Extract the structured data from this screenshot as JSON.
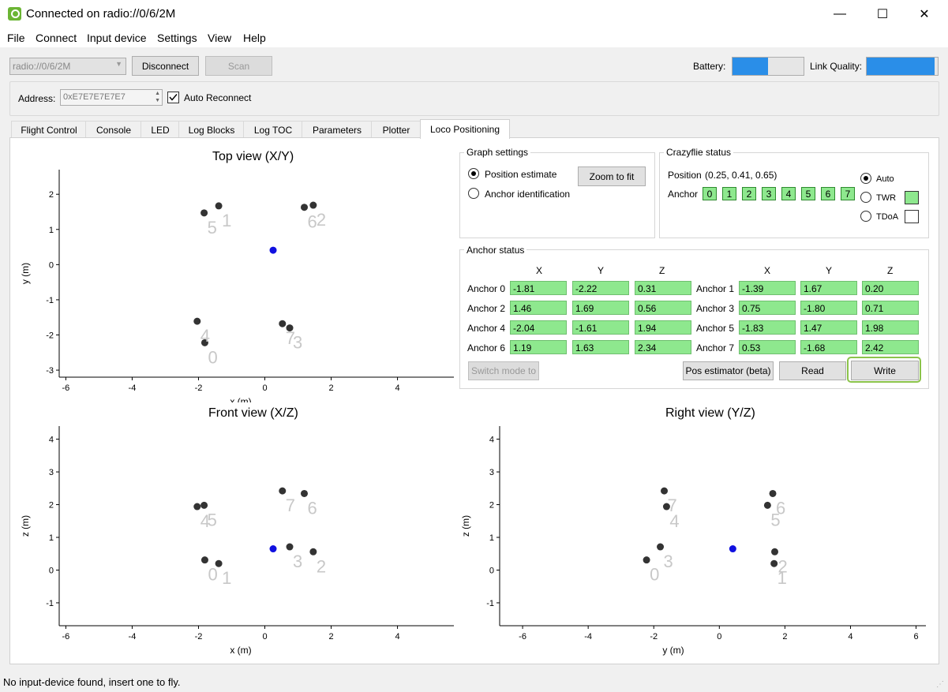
{
  "window": {
    "title": "Connected on radio://0/6/2M",
    "minimize": "—",
    "maximize": "☐",
    "close": "✕"
  },
  "menu": [
    "File",
    "Connect",
    "Input device",
    "Settings",
    "View",
    "Help"
  ],
  "toolbar": {
    "uri": "radio://0/6/2M",
    "disconnect": "Disconnect",
    "scan": "Scan",
    "battery_label": "Battery:",
    "battery_level": 0.5,
    "link_label": "Link Quality:",
    "link_level": 0.95,
    "address_label": "Address:",
    "address_value": "0xE7E7E7E7E7",
    "auto_reconnect": "Auto Reconnect",
    "auto_reconnect_checked": true
  },
  "tabs": [
    "Flight Control",
    "Console",
    "LED",
    "Log Blocks",
    "Log TOC",
    "Parameters",
    "Plotter",
    "Loco Positioning"
  ],
  "active_tab": "Loco Positioning",
  "graph_settings": {
    "title": "Graph settings",
    "option_position": "Position estimate",
    "option_anchor": "Anchor identification",
    "zoom_button": "Zoom to fit"
  },
  "crazyflie_status": {
    "title": "Crazyflie status",
    "position_label": "Position",
    "position_value": "(0.25, 0.41, 0.65)",
    "anchor_label": "Anchor",
    "anchors": [
      "0",
      "1",
      "2",
      "3",
      "4",
      "5",
      "6",
      "7"
    ],
    "mode_auto": "Auto",
    "mode_twr": "TWR",
    "mode_tdoa": "TDoA",
    "twr_color": "#8ee88e"
  },
  "anchor_status": {
    "title": "Anchor status",
    "col_x": "X",
    "col_y": "Y",
    "col_z": "Z",
    "rows": [
      {
        "left": {
          "label": "Anchor 0",
          "x": "-1.81",
          "y": "-2.22",
          "z": "0.31"
        },
        "right": {
          "label": "Anchor 1",
          "x": "-1.39",
          "y": "1.67",
          "z": "0.20"
        }
      },
      {
        "left": {
          "label": "Anchor 2",
          "x": "1.46",
          "y": "1.69",
          "z": "0.56"
        },
        "right": {
          "label": "Anchor 3",
          "x": "0.75",
          "y": "-1.80",
          "z": "0.71"
        }
      },
      {
        "left": {
          "label": "Anchor 4",
          "x": "-2.04",
          "y": "-1.61",
          "z": "1.94"
        },
        "right": {
          "label": "Anchor 5",
          "x": "-1.83",
          "y": "1.47",
          "z": "1.98"
        }
      },
      {
        "left": {
          "label": "Anchor 6",
          "x": "1.19",
          "y": "1.63",
          "z": "2.34"
        },
        "right": {
          "label": "Anchor 7",
          "x": "0.53",
          "y": "-1.68",
          "z": "2.42"
        }
      }
    ],
    "switch_mode": "Switch mode to",
    "pos_estimator": "Pos estimator (beta)",
    "read": "Read",
    "write": "Write"
  },
  "chart_data": [
    {
      "type": "scatter",
      "title": "Top view (X/Y)",
      "xlabel": "x (m)",
      "ylabel": "y (m)",
      "xlim": [
        -6.2,
        5.7
      ],
      "ylim": [
        -3.2,
        2.7
      ],
      "xticks": [
        -6,
        -4,
        -2,
        0,
        2,
        4
      ],
      "yticks": [
        2,
        1,
        0,
        -1,
        -2,
        -3
      ],
      "anchor_points": [
        {
          "label": "0",
          "x": -1.81,
          "y": -2.22
        },
        {
          "label": "1",
          "x": -1.39,
          "y": 1.67
        },
        {
          "label": "2",
          "x": 1.46,
          "y": 1.69
        },
        {
          "label": "3",
          "x": 0.75,
          "y": -1.8
        },
        {
          "label": "4",
          "x": -2.04,
          "y": -1.61
        },
        {
          "label": "5",
          "x": -1.83,
          "y": 1.47
        },
        {
          "label": "6",
          "x": 1.19,
          "y": 1.63
        },
        {
          "label": "7",
          "x": 0.53,
          "y": -1.68
        }
      ],
      "position": {
        "x": 0.25,
        "y": 0.41
      }
    },
    {
      "type": "scatter",
      "title": "Front view (X/Z)",
      "xlabel": "x (m)",
      "ylabel": "z (m)",
      "xlim": [
        -6.2,
        5.7
      ],
      "ylim": [
        -1.7,
        4.4
      ],
      "xticks": [
        -6,
        -4,
        -2,
        0,
        2,
        4
      ],
      "yticks": [
        4,
        3,
        2,
        1,
        0,
        -1
      ],
      "anchor_points": [
        {
          "label": "0",
          "x": -1.81,
          "y": 0.31
        },
        {
          "label": "1",
          "x": -1.39,
          "y": 0.2
        },
        {
          "label": "2",
          "x": 1.46,
          "y": 0.56
        },
        {
          "label": "3",
          "x": 0.75,
          "y": 0.71
        },
        {
          "label": "4",
          "x": -2.04,
          "y": 1.94
        },
        {
          "label": "5",
          "x": -1.83,
          "y": 1.98
        },
        {
          "label": "6",
          "x": 1.19,
          "y": 2.34
        },
        {
          "label": "7",
          "x": 0.53,
          "y": 2.42
        }
      ],
      "position": {
        "x": 0.25,
        "y": 0.65
      }
    },
    {
      "type": "scatter",
      "title": "Right view (Y/Z)",
      "xlabel": "y (m)",
      "ylabel": "z (m)",
      "xlim": [
        -6.7,
        6.3
      ],
      "ylim": [
        -1.7,
        4.4
      ],
      "xticks": [
        -6,
        -4,
        -2,
        0,
        2,
        4,
        6
      ],
      "yticks": [
        4,
        3,
        2,
        1,
        0,
        -1
      ],
      "anchor_points": [
        {
          "label": "0",
          "x": -2.22,
          "y": 0.31
        },
        {
          "label": "1",
          "x": 1.67,
          "y": 0.2
        },
        {
          "label": "2",
          "x": 1.69,
          "y": 0.56
        },
        {
          "label": "3",
          "x": -1.8,
          "y": 0.71
        },
        {
          "label": "4",
          "x": -1.61,
          "y": 1.94
        },
        {
          "label": "5",
          "x": 1.47,
          "y": 1.98
        },
        {
          "label": "6",
          "x": 1.63,
          "y": 2.34
        },
        {
          "label": "7",
          "x": -1.68,
          "y": 2.42
        }
      ],
      "position": {
        "x": 0.41,
        "y": 0.65
      }
    }
  ],
  "status_bar": "No input-device found, insert one to fly."
}
